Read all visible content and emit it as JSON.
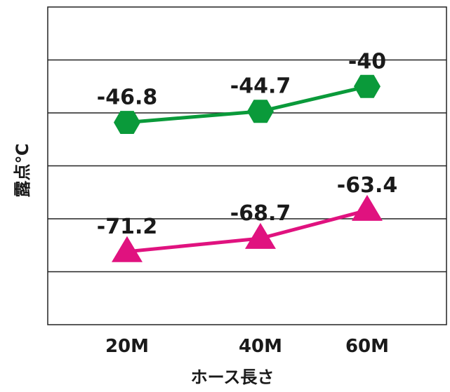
{
  "chart_data": {
    "type": "line",
    "categories": [
      "20M",
      "40M",
      "60M"
    ],
    "xlabel": "ホース長さ",
    "ylabel": "露点℃",
    "ylim": [
      -85,
      -25
    ],
    "grid": "horizontal",
    "series": [
      {
        "values": [
          -46.8,
          -44.7,
          -40
        ],
        "color": "#0a9a3a",
        "marker": "hexagon"
      },
      {
        "values": [
          -71.2,
          -68.7,
          -63.4
        ],
        "color": "#e0127f",
        "marker": "triangle"
      }
    ]
  }
}
